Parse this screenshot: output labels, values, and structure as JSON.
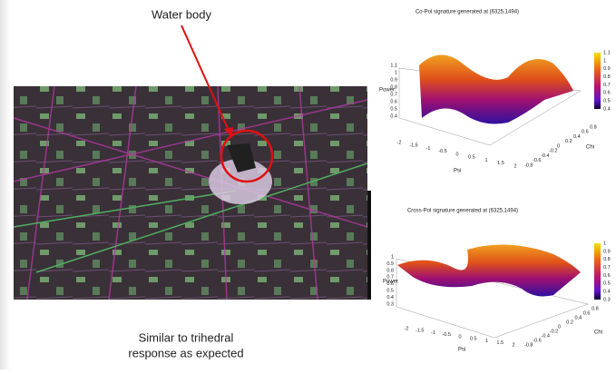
{
  "callout": "Water body",
  "caption": [
    "Similar to trihedral",
    "response as expected"
  ],
  "plots": [
    {
      "title": "Co-Pol signature generated at (6325,1494)",
      "zlabel": "Power",
      "xlabel": "Psi",
      "ylabel": "Chi",
      "zticks": [
        "1.1",
        "1",
        "0.9",
        "0.8",
        "0.7",
        "0.6",
        "0.5",
        "0.4"
      ],
      "xticks": [
        "-2",
        "-1.5",
        "-1",
        "-0.5",
        "0",
        "0.5",
        "1",
        "1.5",
        "2"
      ],
      "yticks": [
        "-0.8",
        "-0.6",
        "-0.4",
        "-0.2",
        "0",
        "0.2",
        "0.4",
        "0.6",
        "0.8"
      ],
      "colorbar": [
        "1.1",
        "1",
        "0.9",
        "0.8",
        "0.7",
        "0.6",
        "0.5",
        "0.4"
      ]
    },
    {
      "title": "Cross-Pol signature generated at (6325,1494)",
      "zlabel": "Power",
      "xlabel": "Psi",
      "ylabel": "Chi",
      "zticks": [
        "1",
        "0.9",
        "0.8",
        "0.7",
        "0.6",
        "0.5",
        "0.4",
        "0.3"
      ],
      "xticks": [
        "-2",
        "-1.5",
        "-1",
        "-0.5",
        "0",
        "0.5",
        "1",
        "1.5",
        "2"
      ],
      "yticks": [
        "-0.8",
        "-0.6",
        "-0.4",
        "-0.2",
        "0",
        "0.2",
        "0.4",
        "0.6",
        "0.8"
      ],
      "colorbar": [
        "1",
        "0.9",
        "0.8",
        "0.7",
        "0.6",
        "0.5",
        "0.4",
        "0.3"
      ]
    }
  ]
}
